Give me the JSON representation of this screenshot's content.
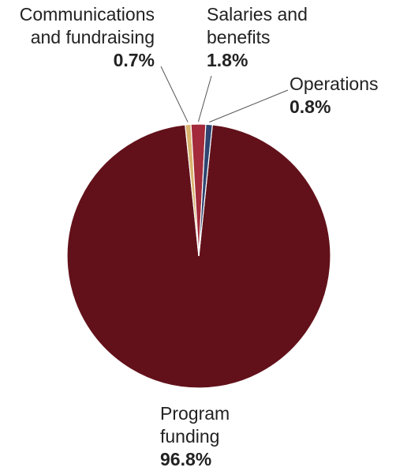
{
  "chart_data": {
    "type": "pie",
    "slices": [
      {
        "label_lines": [
          "Program",
          "funding"
        ],
        "value": 96.8,
        "value_label": "96.8%",
        "color": "#62111a"
      },
      {
        "label_lines": [
          "Communications",
          "and fundraising"
        ],
        "value": 0.7,
        "value_label": "0.7%",
        "color": "#d9b36e"
      },
      {
        "label_lines": [
          "Salaries and",
          "benefits"
        ],
        "value": 1.8,
        "value_label": "1.8%",
        "color": "#a32a3a"
      },
      {
        "label_lines": [
          "Operations"
        ],
        "value": 0.8,
        "value_label": "0.8%",
        "color": "#2f4470"
      }
    ],
    "leader_line_color": "#555555",
    "slice_border_color": "#ffffff"
  }
}
